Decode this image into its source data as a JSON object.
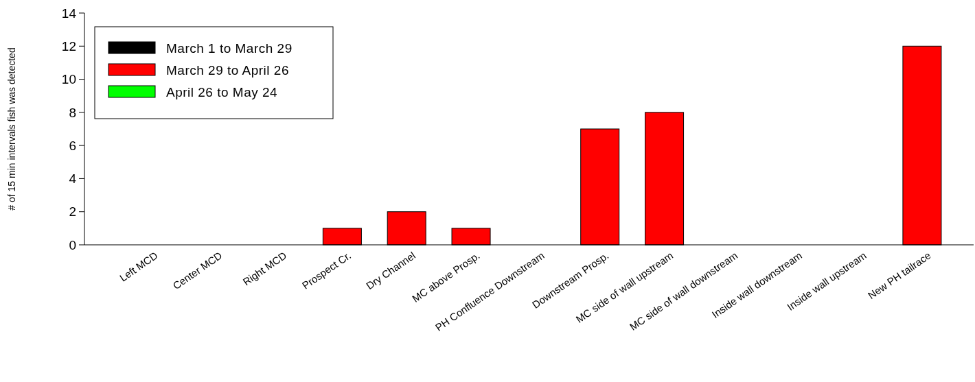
{
  "chart_data": {
    "type": "bar",
    "ylabel": "# of 15 min intervals fish was detected",
    "categories": [
      "Left MCD",
      "Center MCD",
      "Right MCD",
      "Prospect Cr.",
      "Dry Channel",
      "MC above Prosp.",
      "PH Confluence Downstream",
      "Downstream Prosp.",
      "MC side of wall upstream",
      "MC side of wall downstream",
      "Inside wall downstream",
      "Inside wall upstream",
      "New PH tailrace"
    ],
    "series": [
      {
        "name": "March 1 to March 29",
        "color": "#000000",
        "values": [
          0,
          0,
          0,
          0,
          0,
          0,
          0,
          0,
          0,
          0,
          0,
          0,
          0
        ]
      },
      {
        "name": "March 29 to April 26",
        "color": "#ff0000",
        "values": [
          0,
          0,
          0,
          1,
          2,
          1,
          0,
          7,
          8,
          0,
          0,
          0,
          12
        ]
      },
      {
        "name": "April 26 to May 24",
        "color": "#00ff00",
        "values": [
          0,
          0,
          0,
          0,
          0,
          0,
          0,
          0,
          0,
          0,
          0,
          0,
          0
        ]
      }
    ],
    "ylim": [
      0,
      14
    ],
    "yticks": [
      0,
      2,
      4,
      6,
      8,
      10,
      12,
      14
    ],
    "grid": false,
    "legend": "top left"
  }
}
